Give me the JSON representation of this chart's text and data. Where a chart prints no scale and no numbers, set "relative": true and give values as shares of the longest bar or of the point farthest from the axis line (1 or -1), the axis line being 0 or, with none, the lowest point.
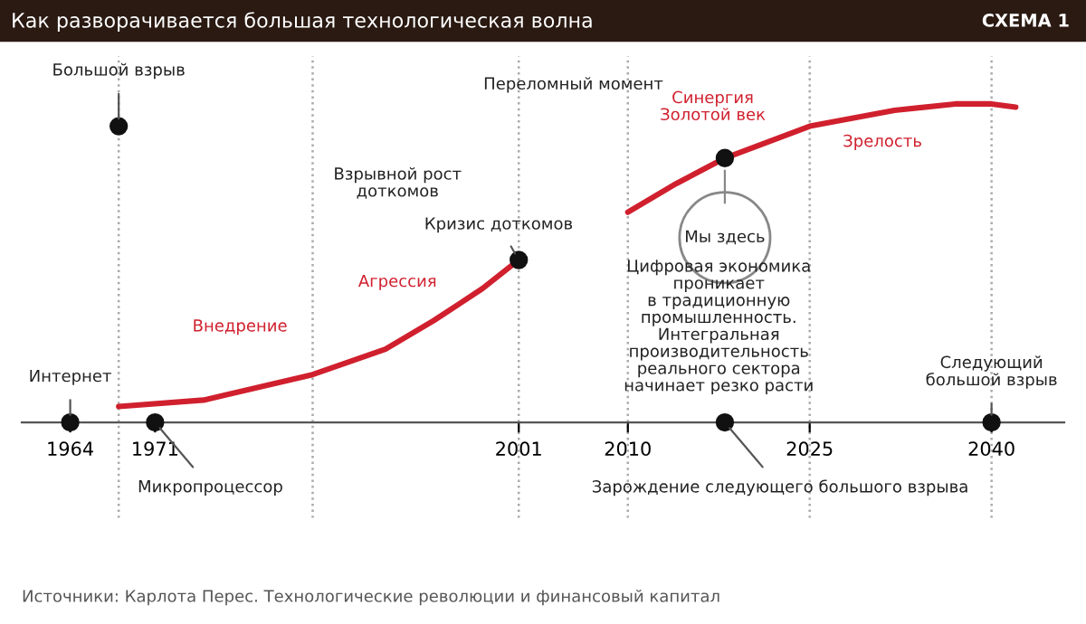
{
  "chart_data": {
    "type": "line",
    "title": "Как разворачивается большая технологическая волна",
    "relative": true,
    "tick_labels": "x",
    "grid": false,
    "legend": false,
    "xlim": [
      1960,
      2046
    ],
    "xticks": [
      1964,
      1971,
      2001,
      2010,
      2025,
      2040
    ],
    "series": [
      {
        "color": "#d0202e",
        "x": [
          1968,
          1975,
          1984,
          1990,
          1994,
          1998,
          2001
        ],
        "values": [
          0.05,
          0.07,
          0.15,
          0.23,
          0.32,
          0.42,
          0.51
        ]
      },
      {
        "color": "#d0202e",
        "x": [
          2010,
          2014,
          2018,
          2025,
          2032,
          2037,
          2040,
          2042
        ],
        "values": [
          0.66,
          0.75,
          0.83,
          0.93,
          0.98,
          1.0,
          1.0,
          0.99
        ]
      },
      {
        "type": "scatter",
        "color": "#111111",
        "x": [
          1968,
          2001,
          2018,
          1964,
          1971,
          2018,
          2040
        ],
        "values": [
          0.93,
          0.51,
          0.83,
          0,
          0,
          0,
          0
        ]
      }
    ],
    "ref_lines": [
      {
        "axis": "x",
        "value": 1968,
        "color": "#aaaaaa",
        "line_style": "dotted"
      },
      {
        "axis": "x",
        "value": 1984,
        "color": "#aaaaaa",
        "line_style": "dotted"
      },
      {
        "axis": "x",
        "value": 2001,
        "color": "#aaaaaa",
        "line_style": "dotted"
      },
      {
        "axis": "x",
        "value": 2010,
        "color": "#aaaaaa",
        "line_style": "dotted"
      },
      {
        "axis": "x",
        "value": 2025,
        "color": "#aaaaaa",
        "line_style": "dotted"
      },
      {
        "axis": "x",
        "value": 2040,
        "color": "#aaaaaa",
        "line_style": "dotted"
      }
    ],
    "annotations": [
      "СХЕМА 1",
      {
        "text": "Большой взрыв",
        "x": 1968,
        "y": 0.93
      },
      "Переломный момент",
      "Синергия\nЗолотой век",
      "Зрелость",
      "Взрывной рост\nдоткомов",
      {
        "text": "Кризис доткомов",
        "x": 2001,
        "y": 0.51
      },
      "Агрессия",
      "Внедрение",
      "Мы здесь",
      "Цифровая экономика\nпроникает\nв традиционную\nпромышленность.\nИнтегральная\nпроизводительность\nреального сектора\nначинает резко расти",
      {
        "text": "Интернет",
        "x": 1964,
        "y": 0
      },
      {
        "text": "Следующий\nбольшой взрыв",
        "x": 2040,
        "y": 0
      },
      {
        "text": "Микропроцессор",
        "x": 1971,
        "y": 0
      },
      {
        "text": "Зарождение следующего большого взрыва",
        "x": 2018,
        "y": 0
      },
      "Источники: Карлота Перес. Технологические революции и финансовый капитал"
    ]
  }
}
